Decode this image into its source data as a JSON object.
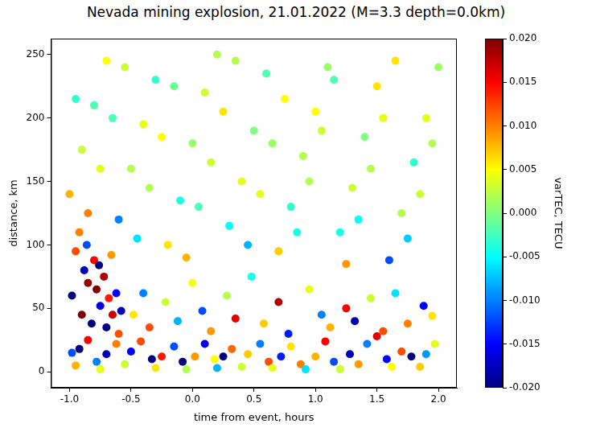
{
  "chart_data": {
    "type": "scatter",
    "title": "Nevada mining explosion, 21.01.2022 (M=3.3 depth=0.0km)",
    "x_label": "time from event, hours",
    "y_label": "distance, km",
    "xlim": [
      -1.15,
      2.15
    ],
    "xticks": [
      {
        "value": -1,
        "label": "-1.0"
      },
      {
        "value": -0.5,
        "label": "-0.5"
      },
      {
        "value": 0,
        "label": "0.0"
      },
      {
        "value": 0.5,
        "label": "0.5"
      },
      {
        "value": 1,
        "label": "1.0"
      },
      {
        "value": 1.5,
        "label": "1.5"
      },
      {
        "value": 2,
        "label": "2.0"
      }
    ],
    "ylim": [
      -12.5,
      262.5
    ],
    "yticks": [
      0,
      50,
      100,
      150,
      200,
      250
    ],
    "grid": false,
    "marker": "circle",
    "color": "jet",
    "colorbar": {
      "label": "varTEC, TECU",
      "range": [
        -0.02,
        0.02
      ],
      "ticks": [
        {
          "value": -0.02,
          "label": "-0.020"
        },
        {
          "value": -0.015,
          "label": "-0.015"
        },
        {
          "value": -0.01,
          "label": "-0.010"
        },
        {
          "value": -0.005,
          "label": "-0.005"
        },
        {
          "value": 0,
          "label": "0.000"
        },
        {
          "value": 0.005,
          "label": "0.005"
        },
        {
          "value": 0.01,
          "label": "0.010"
        },
        {
          "value": 0.015,
          "label": "0.015"
        },
        {
          "value": 0.02,
          "label": "0.020"
        }
      ]
    },
    "series": [
      {
        "x": [
          -1.0,
          -0.9,
          -0.8,
          -0.7,
          -0.6,
          -0.5,
          -0.4,
          -0.3,
          -0.2,
          -0.1,
          0.0,
          0.1,
          0.2,
          0.3,
          0.4,
          0.5,
          0.6,
          0.7,
          0.8,
          0.9,
          1.0,
          1.1,
          1.2,
          1.3,
          1.4,
          1.5,
          1.6,
          1.7,
          1.8,
          1.9,
          2.0
        ],
        "y": [
          140,
          175,
          210,
          245,
          120,
          160,
          195,
          230,
          100,
          135,
          180,
          220,
          250,
          115,
          150,
          190,
          235,
          95,
          130,
          170,
          205,
          240,
          110,
          145,
          185,
          225,
          88,
          125,
          165,
          200,
          240
        ],
        "values": [
          0.008,
          0.003,
          -0.002,
          0.005,
          -0.01,
          0.002,
          0.004,
          -0.003,
          0.006,
          -0.004,
          0.001,
          0.003,
          0.002,
          -0.005,
          0.004,
          0.0,
          -0.002,
          0.007,
          -0.003,
          0.002,
          0.005,
          0.001,
          -0.004,
          0.003,
          0.0,
          0.006,
          -0.012,
          0.002,
          -0.003,
          0.004,
          0.001
        ]
      },
      {
        "x": [
          -0.95,
          -0.85,
          -0.75,
          -0.65,
          -0.55,
          -0.45,
          -0.35,
          -0.25,
          -0.15,
          -0.05,
          0.05,
          0.15,
          0.25,
          0.35,
          0.45,
          0.55,
          0.65,
          0.75,
          0.85,
          0.95,
          1.05,
          1.15,
          1.25,
          1.35,
          1.45,
          1.55,
          1.65,
          1.75,
          1.85,
          1.95
        ],
        "y": [
          215,
          125,
          160,
          200,
          240,
          105,
          145,
          185,
          225,
          90,
          130,
          165,
          205,
          245,
          100,
          140,
          180,
          215,
          110,
          150,
          190,
          230,
          85,
          120,
          160,
          200,
          245,
          105,
          140,
          180
        ],
        "values": [
          -0.003,
          0.01,
          0.004,
          -0.002,
          0.003,
          -0.006,
          0.002,
          0.005,
          -0.001,
          0.008,
          -0.002,
          0.003,
          0.006,
          0.002,
          -0.008,
          0.004,
          0.001,
          0.005,
          -0.004,
          0.002,
          0.003,
          -0.002,
          0.009,
          -0.005,
          0.002,
          0.004,
          0.006,
          -0.007,
          0.003,
          0.002
        ]
      },
      {
        "x": [
          -0.48,
          -0.4,
          -0.35,
          -0.22,
          -0.12,
          0.0,
          0.08,
          0.15,
          0.28,
          0.35,
          0.48,
          0.58,
          0.7,
          0.78,
          0.95,
          1.05,
          1.12,
          1.25,
          1.32,
          1.45,
          1.55,
          1.65,
          1.75,
          1.88,
          1.95
        ],
        "y": [
          45,
          62,
          35,
          55,
          40,
          70,
          48,
          32,
          60,
          42,
          75,
          38,
          55,
          30,
          65,
          45,
          35,
          50,
          40,
          58,
          32,
          62,
          38,
          52,
          44
        ],
        "values": [
          0.006,
          -0.01,
          0.012,
          0.003,
          -0.008,
          0.005,
          -0.012,
          0.009,
          0.002,
          0.016,
          -0.004,
          0.007,
          0.018,
          -0.014,
          0.004,
          -0.01,
          0.008,
          0.015,
          -0.018,
          0.003,
          0.012,
          -0.006,
          0.01,
          -0.015,
          0.006
        ]
      },
      {
        "x": [
          -0.98,
          -0.95,
          -0.9,
          -0.88,
          -0.85,
          -0.82,
          -0.8,
          -0.78,
          -0.75,
          -0.72,
          -0.7,
          -0.68,
          -0.65,
          -0.62,
          -0.6,
          -0.92,
          -0.86,
          -0.76,
          -0.66,
          -0.58
        ],
        "y": [
          60,
          95,
          45,
          80,
          70,
          38,
          88,
          65,
          52,
          75,
          35,
          58,
          45,
          62,
          30,
          110,
          100,
          84,
          92,
          48
        ],
        "values": [
          -0.02,
          0.012,
          0.02,
          -0.018,
          0.019,
          -0.02,
          0.015,
          0.02,
          -0.016,
          0.018,
          -0.02,
          0.014,
          0.017,
          -0.015,
          0.012,
          0.01,
          -0.012,
          -0.02,
          0.009,
          -0.018
        ]
      },
      {
        "x": [
          -0.98,
          -0.95,
          -0.92,
          -0.85,
          -0.78,
          -0.75,
          -0.7,
          -0.62,
          -0.55,
          -0.5,
          -0.42,
          -0.33,
          -0.3,
          -0.25,
          -0.15,
          -0.08,
          -0.05,
          0.02,
          0.1,
          0.18,
          0.2,
          0.25,
          0.32,
          0.4,
          0.45,
          0.55,
          0.62,
          0.65,
          0.72,
          0.8,
          0.88,
          0.92,
          1.0,
          1.08,
          1.15,
          1.2,
          1.28,
          1.35,
          1.42,
          1.5,
          1.58,
          1.62,
          1.7,
          1.78,
          1.85,
          1.9,
          1.97
        ],
        "y": [
          15,
          5,
          18,
          25,
          8,
          2,
          14,
          22,
          6,
          16,
          24,
          10,
          3,
          12,
          20,
          8,
          2,
          12,
          22,
          10,
          3,
          12,
          18,
          4,
          14,
          22,
          8,
          3,
          12,
          20,
          6,
          2,
          12,
          24,
          8,
          2,
          14,
          6,
          22,
          28,
          10,
          4,
          16,
          12,
          4,
          14,
          22
        ],
        "values": [
          -0.012,
          0.008,
          -0.02,
          0.015,
          -0.01,
          0.004,
          -0.018,
          0.01,
          0.003,
          -0.015,
          0.012,
          -0.02,
          0.006,
          0.014,
          -0.012,
          -0.02,
          0.002,
          0.009,
          -0.016,
          0.005,
          -0.008,
          -0.02,
          0.011,
          0.003,
          0.007,
          -0.01,
          0.012,
          0.004,
          -0.014,
          0.006,
          0.01,
          -0.006,
          0.008,
          0.015,
          -0.012,
          0.003,
          -0.018,
          0.009,
          -0.01,
          0.016,
          -0.015,
          0.005,
          0.012,
          -0.02,
          0.007,
          -0.009,
          0.004
        ]
      }
    ]
  }
}
